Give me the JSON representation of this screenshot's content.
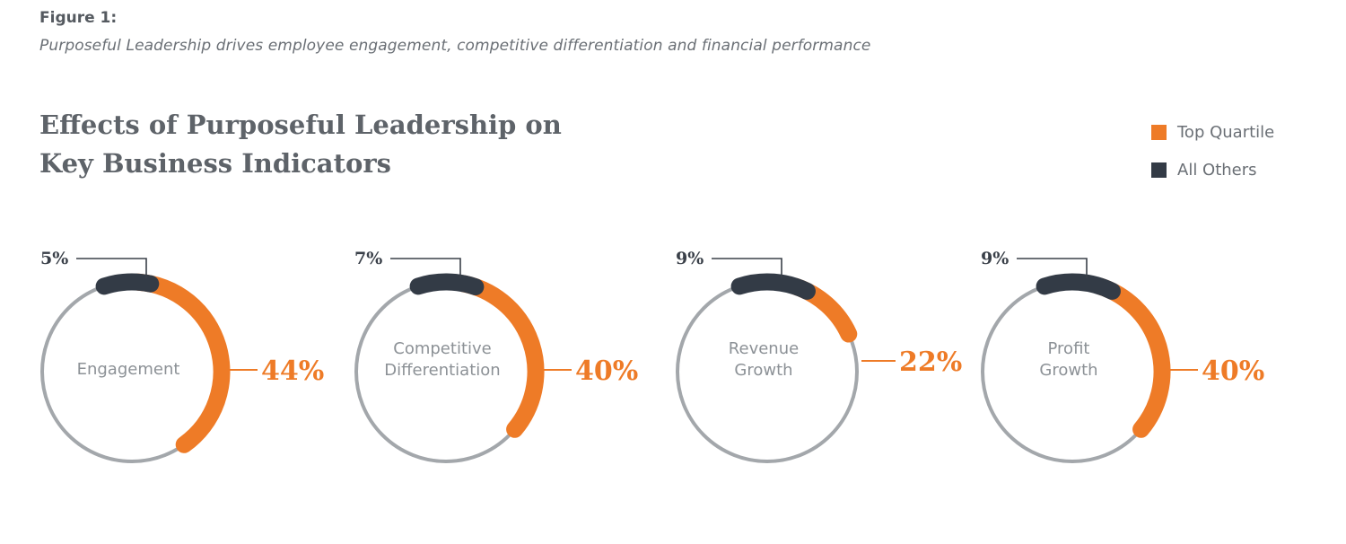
{
  "figure": {
    "label": "Figure 1:",
    "caption": "Purposeful Leadership drives employee engagement, competitive differentiation and financial performance"
  },
  "chart_data": {
    "type": "donut",
    "title_lines": [
      "Effects of Purposeful Leadership on",
      "Key Business Indicators"
    ],
    "legend": [
      {
        "label": "Top Quartile",
        "color": "#ee7b27"
      },
      {
        "label": "All Others",
        "color": "#333b46"
      }
    ],
    "track_color": "#a3a7ab",
    "items": [
      {
        "category_lines": [
          "Engagement"
        ],
        "all_others": 5,
        "top_quartile": 44,
        "all_others_label": "5%",
        "top_quartile_label": "44%"
      },
      {
        "category_lines": [
          "Competitive",
          "Differentiation"
        ],
        "all_others": 7,
        "top_quartile": 40,
        "all_others_label": "7%",
        "top_quartile_label": "40%"
      },
      {
        "category_lines": [
          "Revenue",
          "Growth"
        ],
        "all_others": 9,
        "top_quartile": 22,
        "all_others_label": "9%",
        "top_quartile_label": "22%"
      },
      {
        "category_lines": [
          "Profit",
          "Growth"
        ],
        "all_others": 9,
        "top_quartile": 40,
        "all_others_label": "9%",
        "top_quartile_label": "40%"
      }
    ]
  }
}
